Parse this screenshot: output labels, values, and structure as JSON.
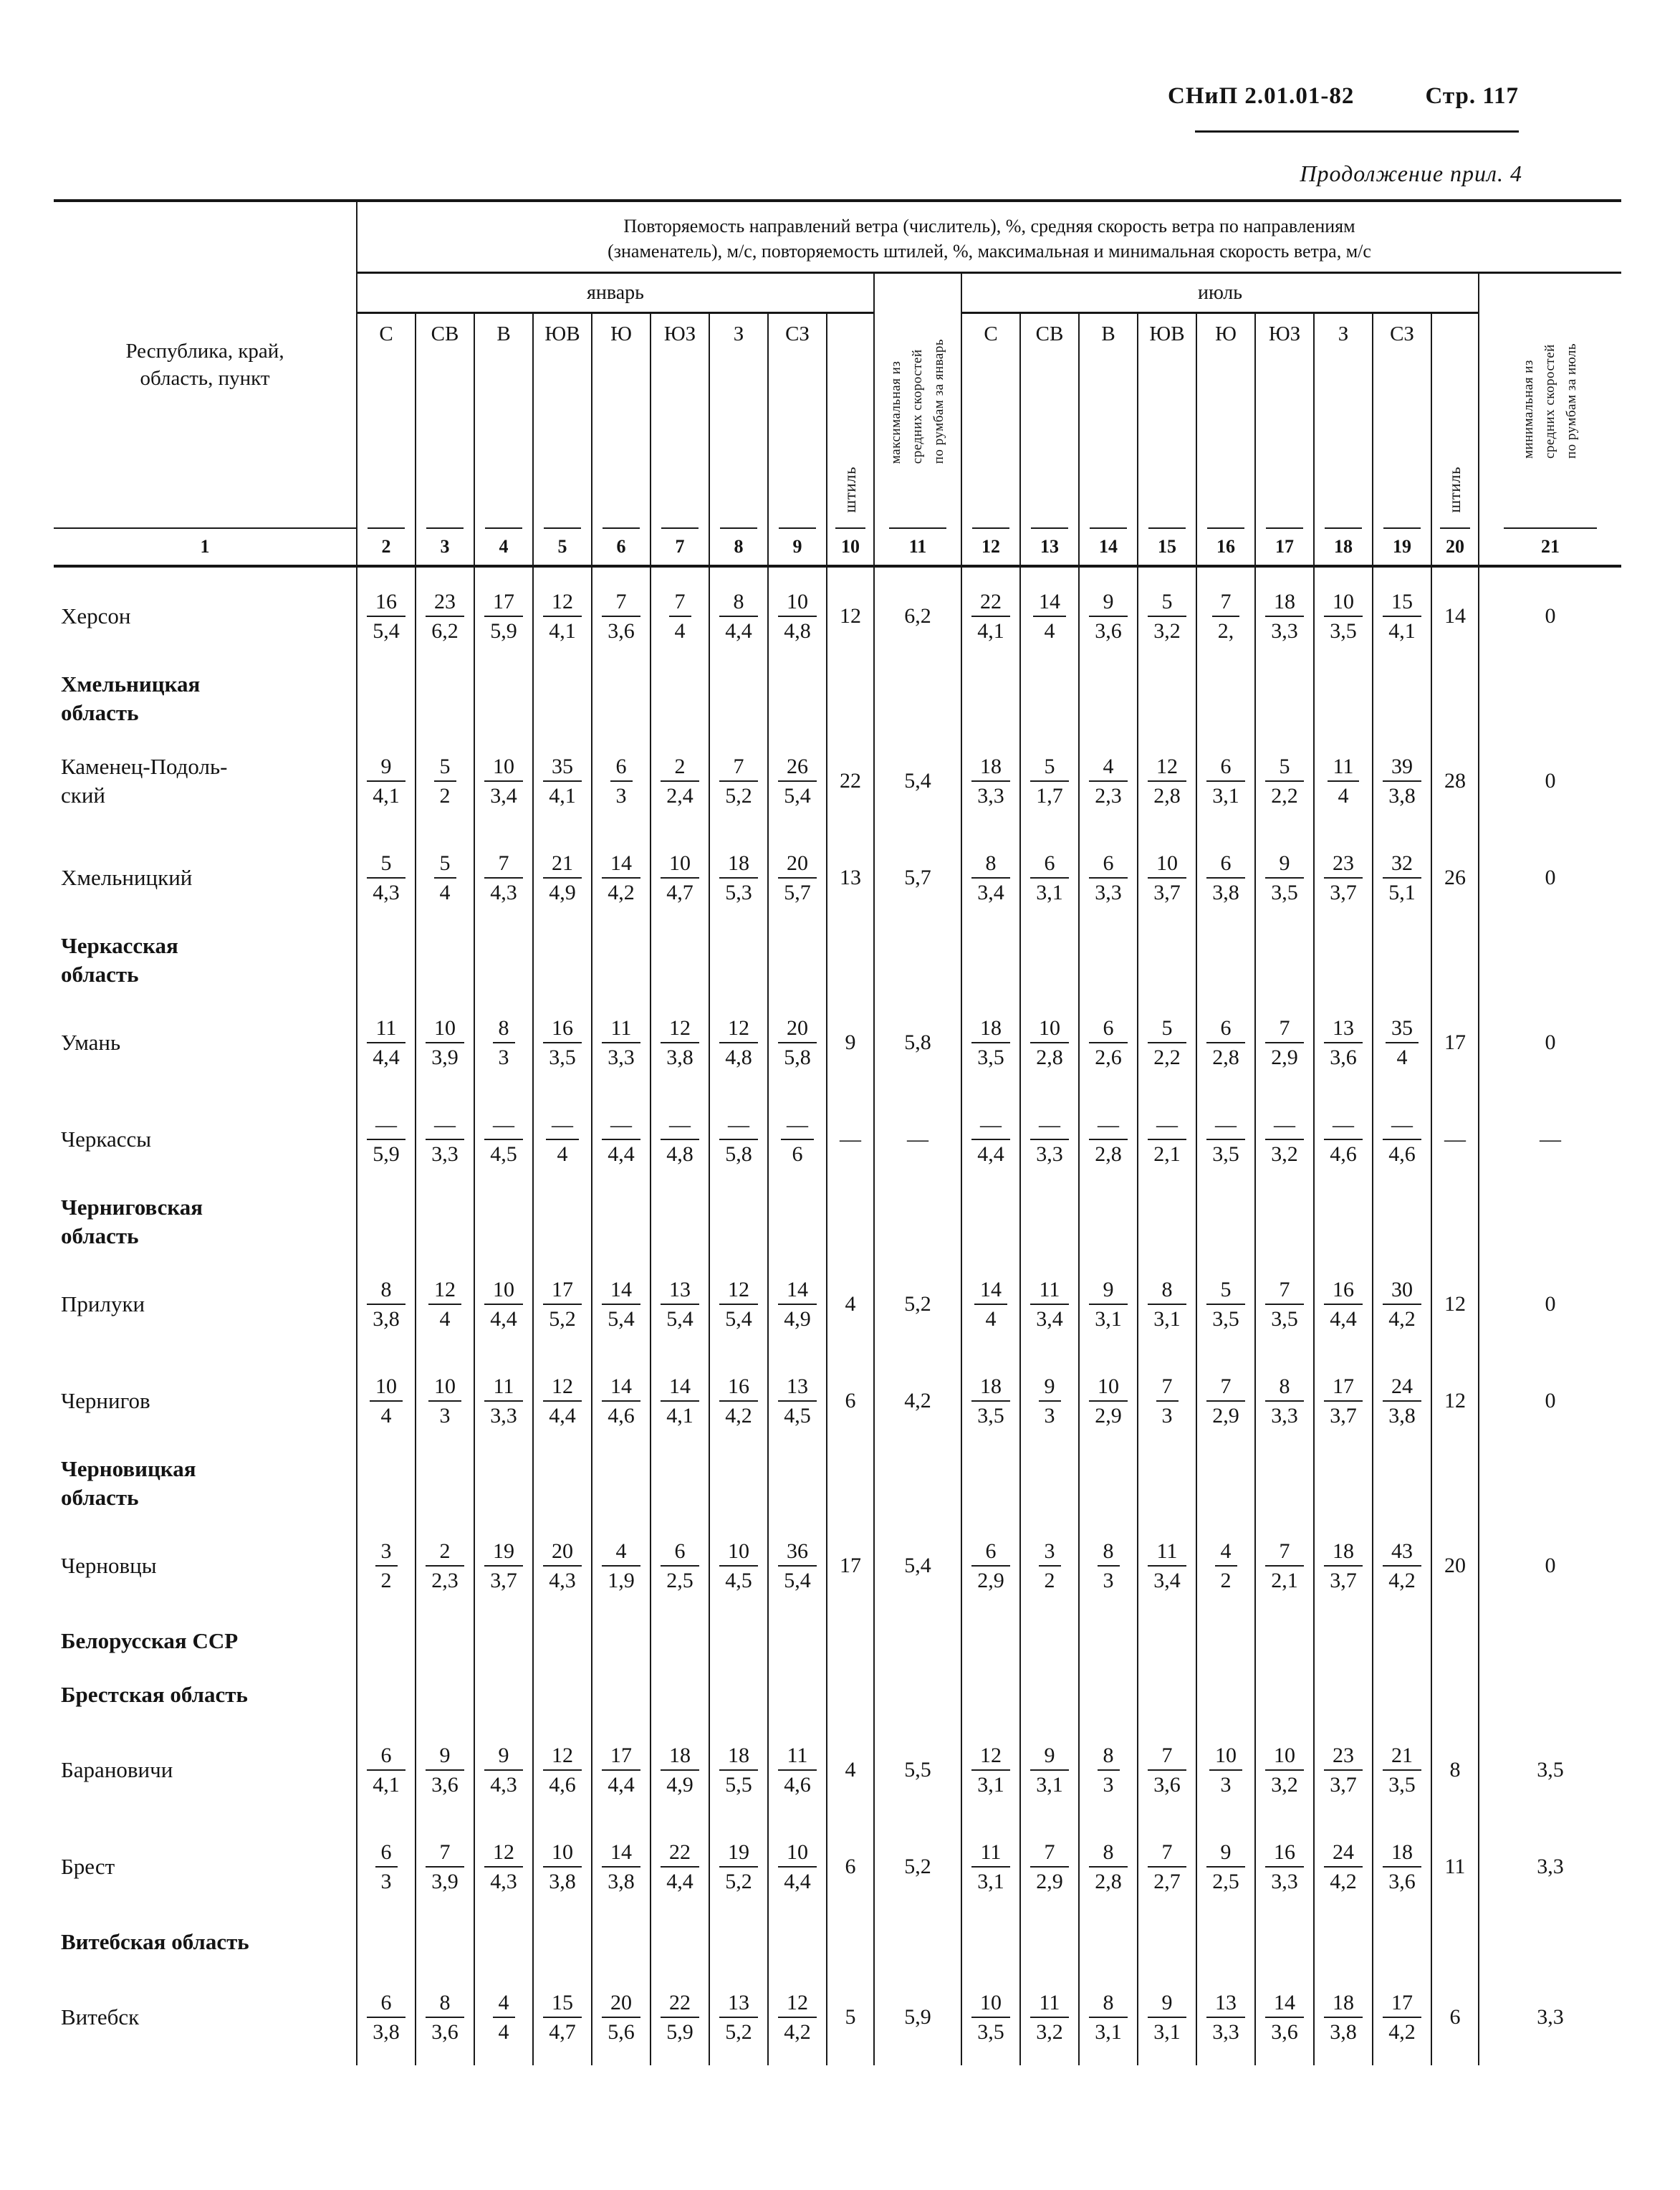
{
  "page_header": {
    "doc_ref": "СНиП 2.01.01-82",
    "page_label": "Стр. 117",
    "continuation": "Продолжение прил. 4"
  },
  "table": {
    "col1_header_lines": [
      "Республика, край,",
      "область, пункт"
    ],
    "span_header_line1": "Повторяемость направлений ветра (числитель), %, средняя скорость ветра по направлениям",
    "span_header_line2": "(знаменатель), м/с, повторяемость штилей, %, максимальная и минимальная скорость ветра, м/с",
    "january_label": "январь",
    "july_label": "июль",
    "calm_label": "штиль",
    "directions": [
      "С",
      "СВ",
      "В",
      "ЮВ",
      "Ю",
      "ЮЗ",
      "З",
      "СЗ"
    ],
    "max_jan_label_lines": [
      "максимальная из",
      "средних скоростей",
      "по румбам за январь"
    ],
    "min_jul_label_lines": [
      "минимальная из",
      "средних скоростей",
      "по румбам за июль"
    ],
    "col_numbers": [
      "1",
      "2",
      "3",
      "4",
      "5",
      "6",
      "7",
      "8",
      "9",
      "10",
      "11",
      "12",
      "13",
      "14",
      "15",
      "16",
      "17",
      "18",
      "19",
      "20",
      "21"
    ],
    "rows": [
      {
        "type": "city",
        "lines": [
          "Херсон"
        ],
        "jan": [
          [
            "16",
            "5,4"
          ],
          [
            "23",
            "6,2"
          ],
          [
            "17",
            "5,9"
          ],
          [
            "12",
            "4,1"
          ],
          [
            "7",
            "3,6"
          ],
          [
            "7",
            "4"
          ],
          [
            "8",
            "4,4"
          ],
          [
            "10",
            "4,8"
          ]
        ],
        "jan_calm": "12",
        "max_jan": "6,2",
        "jul": [
          [
            "22",
            "4,1"
          ],
          [
            "14",
            "4"
          ],
          [
            "9",
            "3,6"
          ],
          [
            "5",
            "3,2"
          ],
          [
            "7",
            "2,"
          ],
          [
            "18",
            "3,3"
          ],
          [
            "10",
            "3,5"
          ],
          [
            "15",
            "4,1"
          ]
        ],
        "jul_calm": "14",
        "min_jul": "0"
      },
      {
        "type": "section",
        "lines": [
          "Хмельницкая",
          "область"
        ]
      },
      {
        "type": "city",
        "lines": [
          "Каменец-Подоль-",
          "ский"
        ],
        "jan": [
          [
            "9",
            "4,1"
          ],
          [
            "5",
            "2"
          ],
          [
            "10",
            "3,4"
          ],
          [
            "35",
            "4,1"
          ],
          [
            "6",
            "3"
          ],
          [
            "2",
            "2,4"
          ],
          [
            "7",
            "5,2"
          ],
          [
            "26",
            "5,4"
          ]
        ],
        "jan_calm": "22",
        "max_jan": "5,4",
        "jul": [
          [
            "18",
            "3,3"
          ],
          [
            "5",
            "1,7"
          ],
          [
            "4",
            "2,3"
          ],
          [
            "12",
            "2,8"
          ],
          [
            "6",
            "3,1"
          ],
          [
            "5",
            "2,2"
          ],
          [
            "11",
            "4"
          ],
          [
            "39",
            "3,8"
          ]
        ],
        "jul_calm": "28",
        "min_jul": "0"
      },
      {
        "type": "city",
        "lines": [
          "Хмельницкий"
        ],
        "jan": [
          [
            "5",
            "4,3"
          ],
          [
            "5",
            "4"
          ],
          [
            "7",
            "4,3"
          ],
          [
            "21",
            "4,9"
          ],
          [
            "14",
            "4,2"
          ],
          [
            "10",
            "4,7"
          ],
          [
            "18",
            "5,3"
          ],
          [
            "20",
            "5,7"
          ]
        ],
        "jan_calm": "13",
        "max_jan": "5,7",
        "jul": [
          [
            "8",
            "3,4"
          ],
          [
            "6",
            "3,1"
          ],
          [
            "6",
            "3,3"
          ],
          [
            "10",
            "3,7"
          ],
          [
            "6",
            "3,8"
          ],
          [
            "9",
            "3,5"
          ],
          [
            "23",
            "3,7"
          ],
          [
            "32",
            "5,1"
          ]
        ],
        "jul_calm": "26",
        "min_jul": "0"
      },
      {
        "type": "section",
        "lines": [
          "Черкасская",
          "область"
        ]
      },
      {
        "type": "city",
        "lines": [
          "Умань"
        ],
        "jan": [
          [
            "11",
            "4,4"
          ],
          [
            "10",
            "3,9"
          ],
          [
            "8",
            "3"
          ],
          [
            "16",
            "3,5"
          ],
          [
            "11",
            "3,3"
          ],
          [
            "12",
            "3,8"
          ],
          [
            "12",
            "4,8"
          ],
          [
            "20",
            "5,8"
          ]
        ],
        "jan_calm": "9",
        "max_jan": "5,8",
        "jul": [
          [
            "18",
            "3,5"
          ],
          [
            "10",
            "2,8"
          ],
          [
            "6",
            "2,6"
          ],
          [
            "5",
            "2,2"
          ],
          [
            "6",
            "2,8"
          ],
          [
            "7",
            "2,9"
          ],
          [
            "13",
            "3,6"
          ],
          [
            "35",
            "4"
          ]
        ],
        "jul_calm": "17",
        "min_jul": "0"
      },
      {
        "type": "city",
        "lines": [
          "Черкассы"
        ],
        "jan": [
          [
            "—",
            "5,9"
          ],
          [
            "—",
            "3,3"
          ],
          [
            "—",
            "4,5"
          ],
          [
            "—",
            "4"
          ],
          [
            "—",
            "4,4"
          ],
          [
            "—",
            "4,8"
          ],
          [
            "—",
            "5,8"
          ],
          [
            "—",
            "6"
          ]
        ],
        "jan_calm": "—",
        "max_jan": "—",
        "jul": [
          [
            "—",
            "4,4"
          ],
          [
            "—",
            "3,3"
          ],
          [
            "—",
            "2,8"
          ],
          [
            "—",
            "2,1"
          ],
          [
            "—",
            "3,5"
          ],
          [
            "—",
            "3,2"
          ],
          [
            "—",
            "4,6"
          ],
          [
            "—",
            "4,6"
          ]
        ],
        "jul_calm": "—",
        "min_jul": "—"
      },
      {
        "type": "section",
        "lines": [
          "Черниговская",
          "область"
        ]
      },
      {
        "type": "city",
        "lines": [
          "Прилуки"
        ],
        "jan": [
          [
            "8",
            "3,8"
          ],
          [
            "12",
            "4"
          ],
          [
            "10",
            "4,4"
          ],
          [
            "17",
            "5,2"
          ],
          [
            "14",
            "5,4"
          ],
          [
            "13",
            "5,4"
          ],
          [
            "12",
            "5,4"
          ],
          [
            "14",
            "4,9"
          ]
        ],
        "jan_calm": "4",
        "max_jan": "5,2",
        "jul": [
          [
            "14",
            "4"
          ],
          [
            "11",
            "3,4"
          ],
          [
            "9",
            "3,1"
          ],
          [
            "8",
            "3,1"
          ],
          [
            "5",
            "3,5"
          ],
          [
            "7",
            "3,5"
          ],
          [
            "16",
            "4,4"
          ],
          [
            "30",
            "4,2"
          ]
        ],
        "jul_calm": "12",
        "min_jul": "0"
      },
      {
        "type": "city",
        "lines": [
          "Чернигов"
        ],
        "jan": [
          [
            "10",
            "4"
          ],
          [
            "10",
            "3"
          ],
          [
            "11",
            "3,3"
          ],
          [
            "12",
            "4,4"
          ],
          [
            "14",
            "4,6"
          ],
          [
            "14",
            "4,1"
          ],
          [
            "16",
            "4,2"
          ],
          [
            "13",
            "4,5"
          ]
        ],
        "jan_calm": "6",
        "max_jan": "4,2",
        "jul": [
          [
            "18",
            "3,5"
          ],
          [
            "9",
            "3"
          ],
          [
            "10",
            "2,9"
          ],
          [
            "7",
            "3"
          ],
          [
            "7",
            "2,9"
          ],
          [
            "8",
            "3,3"
          ],
          [
            "17",
            "3,7"
          ],
          [
            "24",
            "3,8"
          ]
        ],
        "jul_calm": "12",
        "min_jul": "0"
      },
      {
        "type": "section",
        "lines": [
          "Черновицкая",
          "область"
        ]
      },
      {
        "type": "city",
        "lines": [
          "Черновцы"
        ],
        "jan": [
          [
            "3",
            "2"
          ],
          [
            "2",
            "2,3"
          ],
          [
            "19",
            "3,7"
          ],
          [
            "20",
            "4,3"
          ],
          [
            "4",
            "1,9"
          ],
          [
            "6",
            "2,5"
          ],
          [
            "10",
            "4,5"
          ],
          [
            "36",
            "5,4"
          ]
        ],
        "jan_calm": "17",
        "max_jan": "5,4",
        "jul": [
          [
            "6",
            "2,9"
          ],
          [
            "3",
            "2"
          ],
          [
            "8",
            "3"
          ],
          [
            "11",
            "3,4"
          ],
          [
            "4",
            "2"
          ],
          [
            "7",
            "2,1"
          ],
          [
            "18",
            "3,7"
          ],
          [
            "43",
            "4,2"
          ]
        ],
        "jul_calm": "20",
        "min_jul": "0"
      },
      {
        "type": "section",
        "lines": [
          "Белорусская ССР"
        ]
      },
      {
        "type": "section",
        "lines": [
          "Брестская область"
        ]
      },
      {
        "type": "city",
        "lines": [
          "Барановичи"
        ],
        "jan": [
          [
            "6",
            "4,1"
          ],
          [
            "9",
            "3,6"
          ],
          [
            "9",
            "4,3"
          ],
          [
            "12",
            "4,6"
          ],
          [
            "17",
            "4,4"
          ],
          [
            "18",
            "4,9"
          ],
          [
            "18",
            "5,5"
          ],
          [
            "11",
            "4,6"
          ]
        ],
        "jan_calm": "4",
        "max_jan": "5,5",
        "jul": [
          [
            "12",
            "3,1"
          ],
          [
            "9",
            "3,1"
          ],
          [
            "8",
            "3"
          ],
          [
            "7",
            "3,6"
          ],
          [
            "10",
            "3"
          ],
          [
            "10",
            "3,2"
          ],
          [
            "23",
            "3,7"
          ],
          [
            "21",
            "3,5"
          ]
        ],
        "jul_calm": "8",
        "min_jul": "3,5"
      },
      {
        "type": "city",
        "lines": [
          "Брест"
        ],
        "jan": [
          [
            "6",
            "3"
          ],
          [
            "7",
            "3,9"
          ],
          [
            "12",
            "4,3"
          ],
          [
            "10",
            "3,8"
          ],
          [
            "14",
            "3,8"
          ],
          [
            "22",
            "4,4"
          ],
          [
            "19",
            "5,2"
          ],
          [
            "10",
            "4,4"
          ]
        ],
        "jan_calm": "6",
        "max_jan": "5,2",
        "jul": [
          [
            "11",
            "3,1"
          ],
          [
            "7",
            "2,9"
          ],
          [
            "8",
            "2,8"
          ],
          [
            "7",
            "2,7"
          ],
          [
            "9",
            "2,5"
          ],
          [
            "16",
            "3,3"
          ],
          [
            "24",
            "4,2"
          ],
          [
            "18",
            "3,6"
          ]
        ],
        "jul_calm": "11",
        "min_jul": "3,3"
      },
      {
        "type": "section",
        "lines": [
          "Витебская область"
        ]
      },
      {
        "type": "city",
        "lines": [
          "Витебск"
        ],
        "jan": [
          [
            "6",
            "3,8"
          ],
          [
            "8",
            "3,6"
          ],
          [
            "4",
            "4"
          ],
          [
            "15",
            "4,7"
          ],
          [
            "20",
            "5,6"
          ],
          [
            "22",
            "5,9"
          ],
          [
            "13",
            "5,2"
          ],
          [
            "12",
            "4,2"
          ]
        ],
        "jan_calm": "5",
        "max_jan": "5,9",
        "jul": [
          [
            "10",
            "3,5"
          ],
          [
            "11",
            "3,2"
          ],
          [
            "8",
            "3,1"
          ],
          [
            "9",
            "3,1"
          ],
          [
            "13",
            "3,3"
          ],
          [
            "14",
            "3,6"
          ],
          [
            "18",
            "3,8"
          ],
          [
            "17",
            "4,2"
          ]
        ],
        "jul_calm": "6",
        "min_jul": "3,3"
      }
    ]
  }
}
